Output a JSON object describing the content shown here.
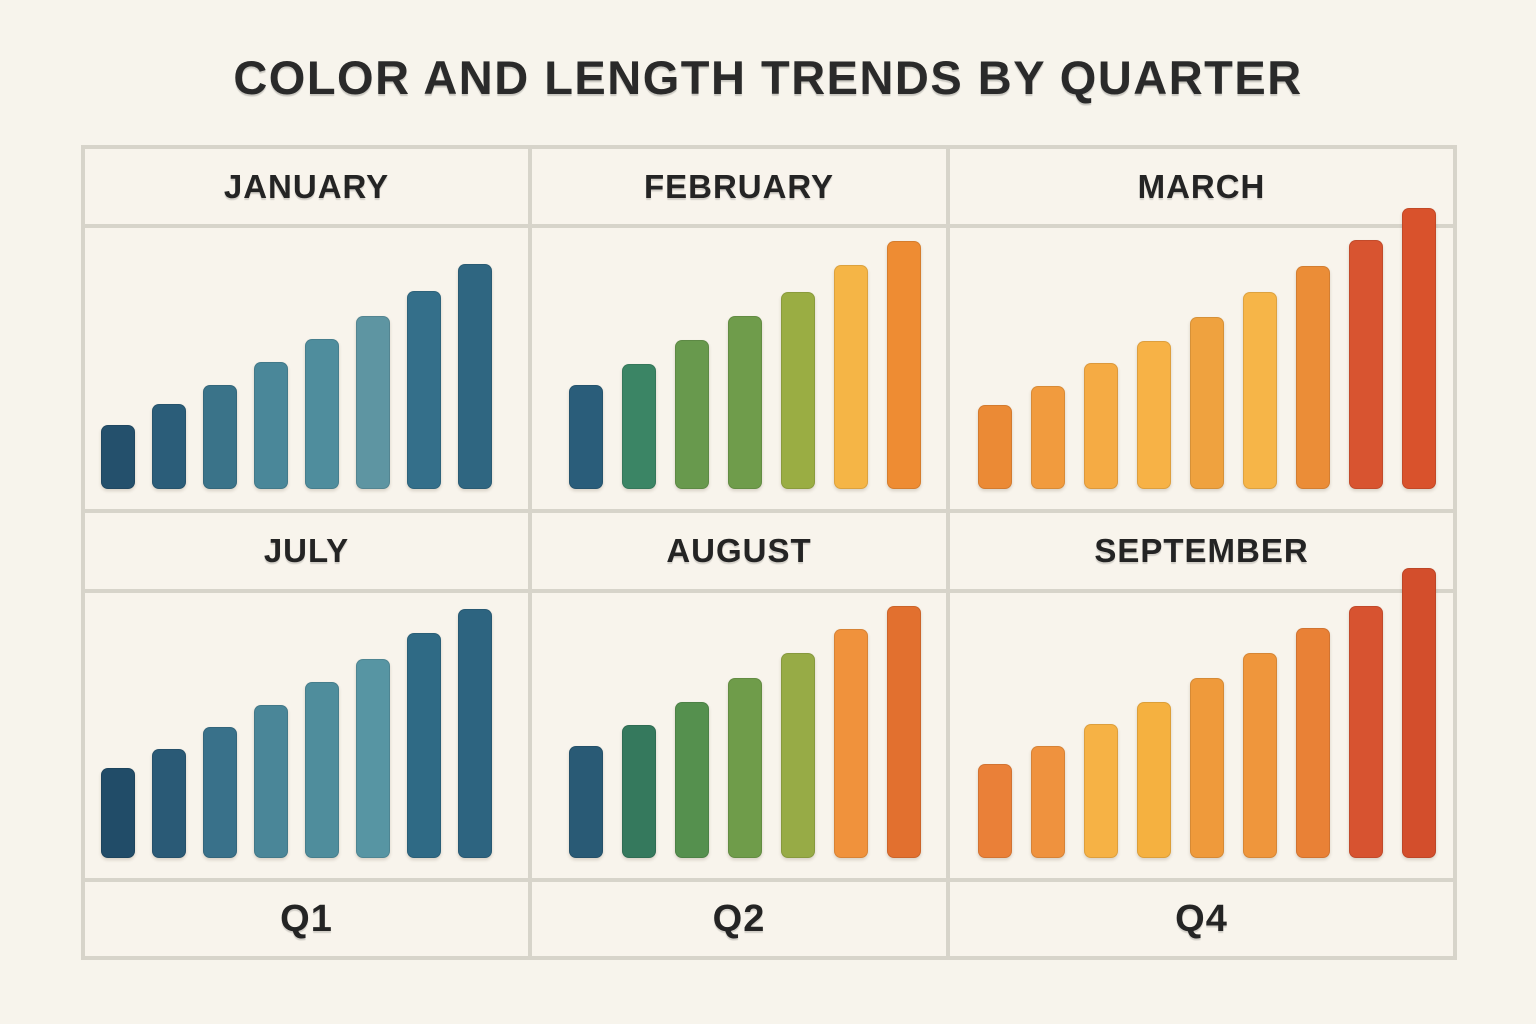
{
  "title": "COLOR AND LENGTH TRENDS BY QUARTER",
  "colors": {
    "background": "#f7f4ec",
    "grid_line": "#d7d4ca",
    "cell_fill": "#f8f4ec",
    "text": "#2a2a2a"
  },
  "panels": [
    {
      "label": "JANUARY"
    },
    {
      "label": "FEBRUARY"
    },
    {
      "label": "MARCH"
    },
    {
      "label": "JULY"
    },
    {
      "label": "AUGUST"
    },
    {
      "label": "SEPTEMBER"
    }
  ],
  "footer": [
    "Q1",
    "Q2",
    "Q4"
  ],
  "chart_data": [
    {
      "type": "bar",
      "title": "JANUARY",
      "quarter_row_label": "Q1",
      "units": "relative bar length (rendered px, no numeric axis shown)",
      "values": [
        64,
        85,
        104,
        127,
        150,
        173,
        198,
        225
      ],
      "bar_colors": [
        "#24506c",
        "#2b5d79",
        "#3a7389",
        "#4a8799",
        "#4f8d9d",
        "#5e95a2",
        "#346f8a",
        "#2f6681"
      ]
    },
    {
      "type": "bar",
      "title": "FEBRUARY",
      "quarter_row_label": "Q2",
      "units": "relative bar length (rendered px, no numeric axis shown)",
      "values": [
        104,
        125,
        149,
        173,
        197,
        224,
        248
      ],
      "bar_colors": [
        "#2a5d7a",
        "#3b8565",
        "#68994d",
        "#6f9c4b",
        "#9aad43",
        "#f5b546",
        "#ee8c33"
      ]
    },
    {
      "type": "bar",
      "title": "MARCH",
      "quarter_row_label": "Q4",
      "units": "relative bar length (rendered px, no numeric axis shown)",
      "values": [
        84,
        103,
        126,
        148,
        172,
        197,
        223,
        249,
        281
      ],
      "bar_colors": [
        "#eb8a35",
        "#f19b3e",
        "#f5ab44",
        "#f7b246",
        "#efa23f",
        "#f6b548",
        "#eb8d37",
        "#d85430",
        "#d9522c"
      ]
    },
    {
      "type": "bar",
      "title": "JULY",
      "quarter_row_label": "Q1",
      "units": "relative bar length (rendered px, no numeric axis shown)",
      "values": [
        90,
        109,
        131,
        153,
        176,
        199,
        225,
        249
      ],
      "bar_colors": [
        "#214c68",
        "#2a5a76",
        "#39718a",
        "#4a8698",
        "#4f8d9c",
        "#5795a3",
        "#2f6a85",
        "#2d6480"
      ]
    },
    {
      "type": "bar",
      "title": "AUGUST",
      "quarter_row_label": "Q2",
      "units": "relative bar length (rendered px, no numeric axis shown)",
      "values": [
        112,
        133,
        156,
        180,
        205,
        229,
        252
      ],
      "bar_colors": [
        "#295a75",
        "#35795d",
        "#55904e",
        "#6f9c4a",
        "#97ab46",
        "#f0923c",
        "#e2702f"
      ]
    },
    {
      "type": "bar",
      "title": "SEPTEMBER",
      "quarter_row_label": "Q4",
      "units": "relative bar length (rendered px, no numeric axis shown)",
      "values": [
        94,
        112,
        134,
        156,
        180,
        205,
        230,
        252,
        290
      ],
      "bar_colors": [
        "#ea8038",
        "#ef923e",
        "#f6b245",
        "#f5b140",
        "#ef9a3b",
        "#ef963c",
        "#e98136",
        "#d75330",
        "#d34e2c"
      ]
    }
  ]
}
